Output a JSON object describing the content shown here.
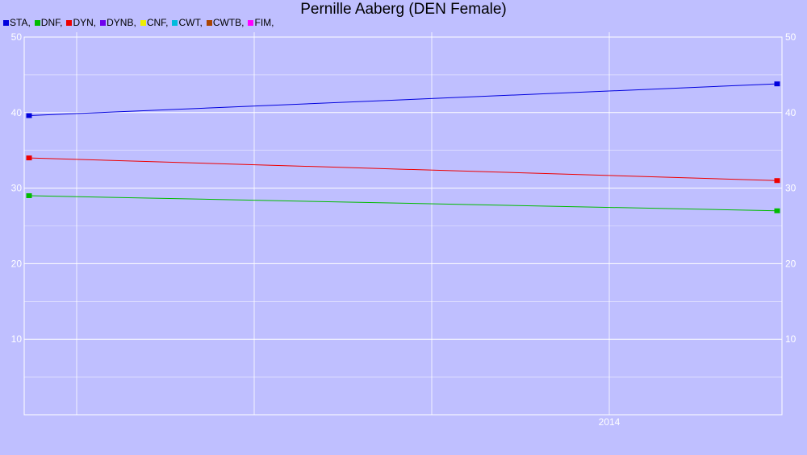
{
  "chart_data": {
    "type": "line",
    "title": "Pernille Aaberg (DEN Female)",
    "xlabel": "",
    "ylabel": "",
    "ylim": [
      0,
      50
    ],
    "yticks": [
      10,
      20,
      30,
      40,
      50
    ],
    "x_tick_labels": [
      "2014"
    ],
    "grid": true,
    "legend_position": "top-left",
    "legend": [
      {
        "label": "STA,",
        "color": "#0000dd"
      },
      {
        "label": "DNF,",
        "color": "#00bb00"
      },
      {
        "label": "DYN,",
        "color": "#ee0000"
      },
      {
        "label": "DYNB,",
        "color": "#7000ee"
      },
      {
        "label": "CNF,",
        "color": "#eeee00"
      },
      {
        "label": "CWT,",
        "color": "#00bbdd"
      },
      {
        "label": "CWTB,",
        "color": "#aa4400"
      },
      {
        "label": "FIM,",
        "color": "#ff00ff"
      }
    ],
    "series": [
      {
        "code": "STA",
        "color": "#0000dd",
        "values": [
          39.6,
          43.8
        ]
      },
      {
        "code": "DYN",
        "color": "#ee0000",
        "values": [
          34.0,
          31.0
        ]
      },
      {
        "code": "DNF",
        "color": "#00bb00",
        "values": [
          29.0,
          27.0
        ]
      }
    ]
  }
}
